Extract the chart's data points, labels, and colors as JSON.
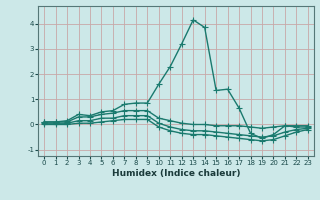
{
  "title": "",
  "xlabel": "Humidex (Indice chaleur)",
  "x": [
    0,
    1,
    2,
    3,
    4,
    5,
    6,
    7,
    8,
    9,
    10,
    11,
    12,
    13,
    14,
    15,
    16,
    17,
    18,
    19,
    20,
    21,
    22,
    23
  ],
  "line1": [
    0.1,
    0.1,
    0.15,
    0.4,
    0.35,
    0.5,
    0.55,
    0.8,
    0.85,
    0.85,
    1.6,
    2.3,
    3.2,
    4.15,
    3.85,
    1.35,
    1.4,
    0.65,
    -0.35,
    -0.55,
    -0.4,
    -0.05,
    -0.1,
    -0.1
  ],
  "line2": [
    0.1,
    0.1,
    0.1,
    0.3,
    0.3,
    0.4,
    0.45,
    0.55,
    0.55,
    0.55,
    0.25,
    0.15,
    0.05,
    0.0,
    0.0,
    -0.05,
    -0.05,
    -0.05,
    -0.1,
    -0.15,
    -0.1,
    -0.05,
    -0.05,
    -0.05
  ],
  "line3": [
    0.05,
    0.05,
    0.05,
    0.15,
    0.15,
    0.25,
    0.25,
    0.35,
    0.35,
    0.35,
    0.05,
    -0.1,
    -0.2,
    -0.25,
    -0.25,
    -0.3,
    -0.35,
    -0.4,
    -0.45,
    -0.5,
    -0.45,
    -0.3,
    -0.2,
    -0.15
  ],
  "line4": [
    0.0,
    0.0,
    0.0,
    0.05,
    0.05,
    0.1,
    0.15,
    0.2,
    0.2,
    0.2,
    -0.1,
    -0.25,
    -0.35,
    -0.4,
    -0.4,
    -0.45,
    -0.5,
    -0.55,
    -0.6,
    -0.65,
    -0.6,
    -0.45,
    -0.3,
    -0.2
  ],
  "line_color": "#1a7a6e",
  "bg_color": "#cce8e8",
  "grid_color": "#c8a8a8",
  "ylim": [
    -1.25,
    4.7
  ],
  "yticks": [
    -1,
    0,
    1,
    2,
    3,
    4
  ],
  "marker": "+",
  "marker_size": 4,
  "linewidth": 1.0
}
